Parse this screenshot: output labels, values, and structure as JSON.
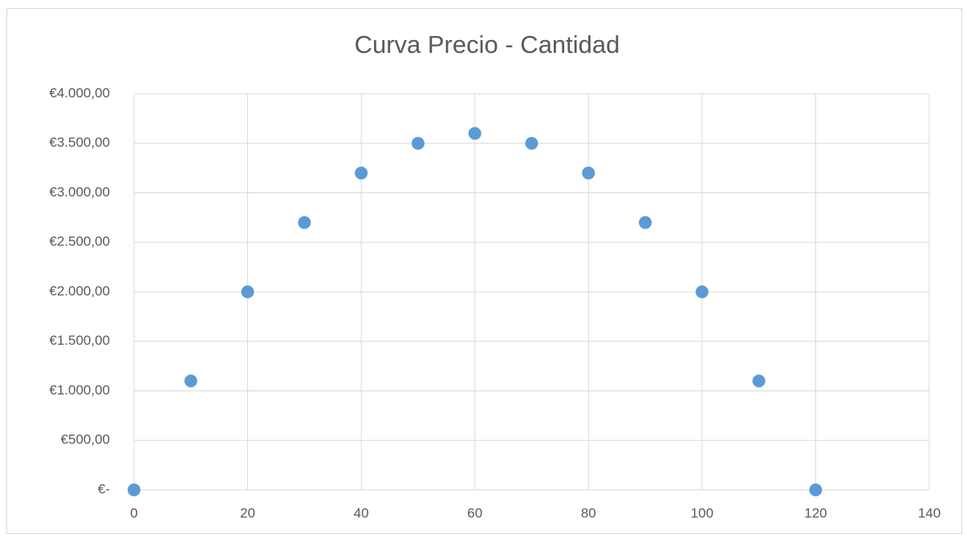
{
  "chart_data": {
    "type": "scatter",
    "title": "Curva Precio - Cantidad",
    "x": [
      0,
      10,
      20,
      30,
      40,
      50,
      60,
      70,
      80,
      90,
      100,
      110,
      120
    ],
    "series": [
      {
        "color": "#5b9bd5",
        "values": [
          0,
          1100,
          2000,
          2700,
          3200,
          3500,
          3600,
          3500,
          3200,
          2700,
          2000,
          1100,
          0
        ]
      }
    ],
    "xlim": [
      0,
      140
    ],
    "xticks": [
      0,
      20,
      40,
      60,
      80,
      100,
      120,
      140
    ],
    "ylim": [
      0,
      4000
    ],
    "yticks": [
      {
        "value": 0,
        "label": "€-"
      },
      {
        "value": 500,
        "label": "€500,00"
      },
      {
        "value": 1000,
        "label": "€1.000,00"
      },
      {
        "value": 1500,
        "label": "€1.500,00"
      },
      {
        "value": 2000,
        "label": "€2.000,00"
      },
      {
        "value": 2500,
        "label": "€2.500,00"
      },
      {
        "value": 3000,
        "label": "€3.000,00"
      },
      {
        "value": 3500,
        "label": "€3.500,00"
      },
      {
        "value": 4000,
        "label": "€4.000,00"
      }
    ],
    "grid": true
  }
}
